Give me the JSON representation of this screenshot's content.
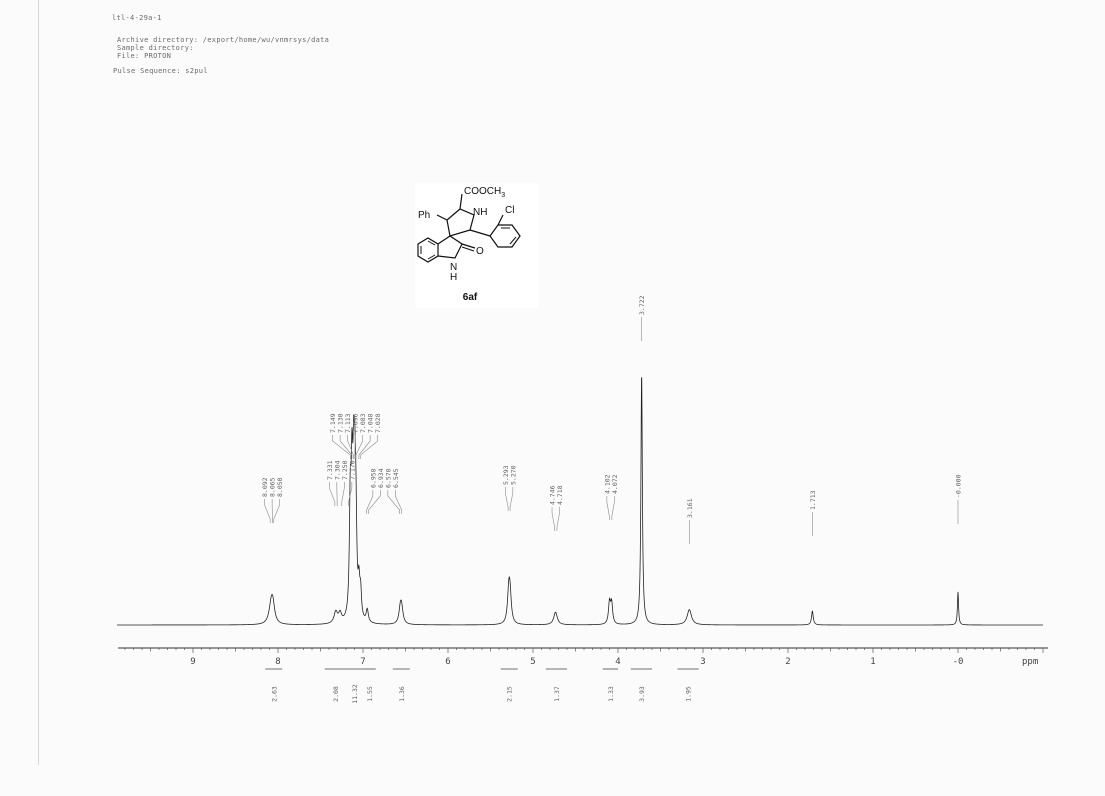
{
  "header": {
    "sample_id": "ltl-4-29a-1",
    "archive_line": "Archive directory: /export/home/wu/vnmrsys/data",
    "sample_line": "Sample directory:",
    "file_line": "File: PROTON",
    "pulse_line": "Pulse Sequence: s2pul"
  },
  "compound": {
    "label": "6af",
    "ester": "COOCH",
    "ester_sub": "3",
    "ph": "Ph",
    "nh": "NH",
    "cl": "Cl",
    "lactam_n": "N",
    "lactam_h": "H",
    "lactam_o": "O"
  },
  "chart_data": {
    "type": "line",
    "title": "",
    "xlabel": "ppm",
    "ylabel": "",
    "xlim": [
      9.9,
      -1.0
    ],
    "axis_reversed": true,
    "ticks": [
      "9",
      "8",
      "7",
      "6",
      "5",
      "4",
      "3",
      "2",
      "1",
      "-0"
    ],
    "tick_values": [
      9,
      8,
      7,
      6,
      5,
      4,
      3,
      2,
      1,
      0
    ],
    "peak_labels": [
      {
        "group": "g1",
        "labels": [
          "8.092",
          "8.065",
          "8.050"
        ],
        "ppm": [
          8.092,
          8.065,
          8.05
        ]
      },
      {
        "group": "g2",
        "labels": [
          "7.331",
          "7.304",
          "7.250",
          "7.170"
        ],
        "ppm": [
          7.331,
          7.304,
          7.25,
          7.17
        ]
      },
      {
        "group": "g3",
        "labels": [
          "7.149",
          "7.130",
          "7.113",
          "7.096",
          "7.083",
          "7.048",
          "7.028"
        ],
        "ppm": [
          7.149,
          7.13,
          7.113,
          7.096,
          7.083,
          7.048,
          7.028
        ]
      },
      {
        "group": "g4",
        "labels": [
          "6.958",
          "6.934",
          "6.570",
          "6.545"
        ],
        "ppm": [
          6.958,
          6.934,
          6.57,
          6.545
        ]
      },
      {
        "group": "g5",
        "labels": [
          "5.293",
          "5.270"
        ],
        "ppm": [
          5.293,
          5.27
        ]
      },
      {
        "group": "g6",
        "labels": [
          "4.746",
          "4.718"
        ],
        "ppm": [
          4.746,
          4.718
        ]
      },
      {
        "group": "g7",
        "labels": [
          "4.102",
          "4.072"
        ],
        "ppm": [
          4.102,
          4.072
        ]
      },
      {
        "group": "g8",
        "labels": [
          "3.722"
        ],
        "ppm": [
          3.722
        ]
      },
      {
        "group": "g9",
        "labels": [
          "3.161"
        ],
        "ppm": [
          3.161
        ]
      },
      {
        "group": "g10",
        "labels": [
          "1.713"
        ],
        "ppm": [
          1.713
        ]
      },
      {
        "group": "g11",
        "labels": [
          "-0.000"
        ],
        "ppm": [
          0.0
        ]
      }
    ],
    "peaks": [
      {
        "ppm": 8.08,
        "height": 0.075,
        "width": 0.03
      },
      {
        "ppm": 8.06,
        "height": 0.06,
        "width": 0.025
      },
      {
        "ppm": 7.32,
        "height": 0.045,
        "width": 0.025
      },
      {
        "ppm": 7.27,
        "height": 0.035,
        "width": 0.02
      },
      {
        "ppm": 7.15,
        "height": 0.42,
        "width": 0.012
      },
      {
        "ppm": 7.13,
        "height": 0.48,
        "width": 0.012
      },
      {
        "ppm": 7.11,
        "height": 0.44,
        "width": 0.012
      },
      {
        "ppm": 7.096,
        "height": 0.38,
        "width": 0.012
      },
      {
        "ppm": 7.083,
        "height": 0.3,
        "width": 0.012
      },
      {
        "ppm": 7.048,
        "height": 0.12,
        "width": 0.012
      },
      {
        "ppm": 7.028,
        "height": 0.1,
        "width": 0.012
      },
      {
        "ppm": 6.95,
        "height": 0.05,
        "width": 0.015
      },
      {
        "ppm": 6.56,
        "height": 0.06,
        "width": 0.02
      },
      {
        "ppm": 6.545,
        "height": 0.05,
        "width": 0.02
      },
      {
        "ppm": 5.285,
        "height": 0.12,
        "width": 0.018
      },
      {
        "ppm": 5.27,
        "height": 0.1,
        "width": 0.018
      },
      {
        "ppm": 4.735,
        "height": 0.05,
        "width": 0.025
      },
      {
        "ppm": 4.1,
        "height": 0.085,
        "width": 0.014
      },
      {
        "ppm": 4.075,
        "height": 0.08,
        "width": 0.014
      },
      {
        "ppm": 3.722,
        "height": 0.99,
        "width": 0.01
      },
      {
        "ppm": 3.161,
        "height": 0.06,
        "width": 0.03
      },
      {
        "ppm": 1.713,
        "height": 0.055,
        "width": 0.012
      },
      {
        "ppm": 0.0,
        "height": 0.13,
        "width": 0.008
      }
    ],
    "integrals": [
      {
        "value": "2.63",
        "from": 8.15,
        "to": 7.95
      },
      {
        "value": "2.08",
        "from": 7.45,
        "to": 7.2
      },
      {
        "value": "11.32",
        "from": 7.2,
        "to": 7.0
      },
      {
        "value": "1.55",
        "from": 7.0,
        "to": 6.85
      },
      {
        "value": "1.36",
        "from": 6.65,
        "to": 6.45
      },
      {
        "value": "2.15",
        "from": 5.38,
        "to": 5.18
      },
      {
        "value": "1.37",
        "from": 4.85,
        "to": 4.6
      },
      {
        "value": "1.33",
        "from": 4.18,
        "to": 4.0
      },
      {
        "value": "3.93",
        "from": 3.85,
        "to": 3.6
      },
      {
        "value": "1.95",
        "from": 3.3,
        "to": 3.05
      }
    ]
  }
}
